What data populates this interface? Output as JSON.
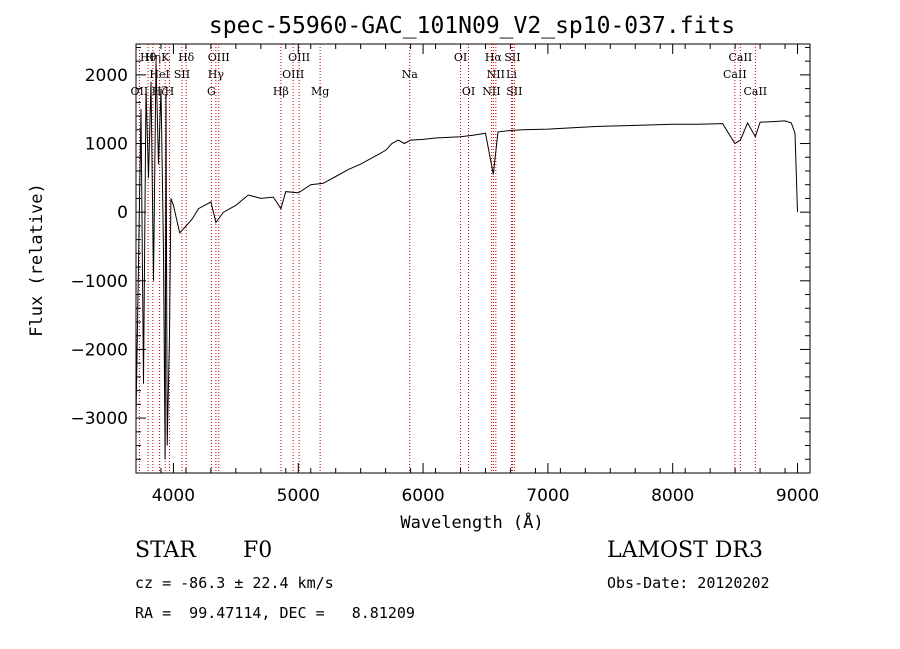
{
  "chart_data": {
    "type": "line",
    "title": "spec-55960-GAC_101N09_V2_sp10-037.fits",
    "xlabel": "Wavelength (Å)",
    "ylabel": "Flux (relative)",
    "xlim": [
      3700,
      9100
    ],
    "ylim": [
      -3800,
      2450
    ],
    "xticks": [
      4000,
      5000,
      6000,
      7000,
      8000,
      9000
    ],
    "yticks": [
      -3000,
      -2000,
      -1000,
      0,
      1000,
      2000
    ],
    "grid": false,
    "series": [
      {
        "name": "spectrum",
        "x": [
          3700,
          3740,
          3760,
          3780,
          3800,
          3820,
          3840,
          3860,
          3880,
          3900,
          3920,
          3933,
          3940,
          3950,
          3968,
          3980,
          4000,
          4050,
          4102,
          4150,
          4200,
          4300,
          4340,
          4400,
          4500,
          4600,
          4700,
          4800,
          4861,
          4900,
          5000,
          5100,
          5200,
          5300,
          5400,
          5500,
          5600,
          5700,
          5750,
          5800,
          5850,
          5900,
          6000,
          6100,
          6200,
          6300,
          6400,
          6500,
          6563,
          6600,
          6700,
          6800,
          7000,
          7200,
          7400,
          7600,
          7800,
          8000,
          8200,
          8400,
          8498,
          8542,
          8600,
          8662,
          8700,
          8800,
          8900,
          8950,
          8980,
          9000
        ],
        "values": [
          -3000,
          1500,
          -2500,
          1800,
          500,
          1900,
          -1000,
          2200,
          700,
          1800,
          -600,
          -3600,
          1700,
          -3400,
          -1800,
          200,
          100,
          -300,
          -200,
          -100,
          50,
          150,
          -150,
          0,
          100,
          250,
          200,
          220,
          50,
          300,
          280,
          400,
          420,
          520,
          620,
          700,
          800,
          900,
          1000,
          1050,
          1000,
          1050,
          1060,
          1080,
          1090,
          1100,
          1120,
          1150,
          550,
          1170,
          1190,
          1200,
          1210,
          1230,
          1250,
          1260,
          1270,
          1280,
          1280,
          1290,
          1000,
          1050,
          1300,
          1100,
          1310,
          1320,
          1330,
          1300,
          1150,
          0
        ]
      }
    ],
    "line_markers": [
      {
        "label": "Hθ",
        "wavelength": 3797,
        "row": 1
      },
      {
        "label": "OII",
        "wavelength": 3727,
        "row": 3
      },
      {
        "label": "Hη",
        "wavelength": 3835,
        "row": 1
      },
      {
        "label": "HeI",
        "wavelength": 3889,
        "row": 2
      },
      {
        "label": "Hζ",
        "wavelength": 3889,
        "row": 3
      },
      {
        "label": "K",
        "wavelength": 3934,
        "row": 1
      },
      {
        "label": "H",
        "wavelength": 3968,
        "row": 3
      },
      {
        "label": "SII",
        "wavelength": 4068,
        "row": 2
      },
      {
        "label": "Hδ",
        "wavelength": 4102,
        "row": 1
      },
      {
        "label": "OIII",
        "wavelength": 4363,
        "row": 1
      },
      {
        "label": "Hγ",
        "wavelength": 4340,
        "row": 2
      },
      {
        "label": "G",
        "wavelength": 4304,
        "row": 3
      },
      {
        "label": "Hβ",
        "wavelength": 4861,
        "row": 3
      },
      {
        "label": "OIII",
        "wavelength": 5007,
        "row": 1
      },
      {
        "label": "OIII",
        "wavelength": 4959,
        "row": 2
      },
      {
        "label": "Mg",
        "wavelength": 5175,
        "row": 3
      },
      {
        "label": "Na",
        "wavelength": 5893,
        "row": 2
      },
      {
        "label": "OI",
        "wavelength": 6300,
        "row": 1
      },
      {
        "label": "OI",
        "wavelength": 6364,
        "row": 3
      },
      {
        "label": "Hα",
        "wavelength": 6563,
        "row": 1
      },
      {
        "label": "SII",
        "wavelength": 6716,
        "row": 1
      },
      {
        "label": "NII",
        "wavelength": 6583,
        "row": 2
      },
      {
        "label": "Li",
        "wavelength": 6708,
        "row": 2
      },
      {
        "label": "NII",
        "wavelength": 6548,
        "row": 3
      },
      {
        "label": "SII",
        "wavelength": 6731,
        "row": 3
      },
      {
        "label": "CaII",
        "wavelength": 8542,
        "row": 1
      },
      {
        "label": "CaII",
        "wavelength": 8498,
        "row": 2
      },
      {
        "label": "CaII",
        "wavelength": 8662,
        "row": 3
      }
    ]
  },
  "info": {
    "class": "STAR",
    "subclass": "F0",
    "survey": "LAMOST DR3",
    "redshift": "cz = -86.3 ± 22.4 km/s",
    "obs_date": "Obs-Date: 20120202",
    "coords": "RA =  99.47114, DEC =   8.81209"
  }
}
